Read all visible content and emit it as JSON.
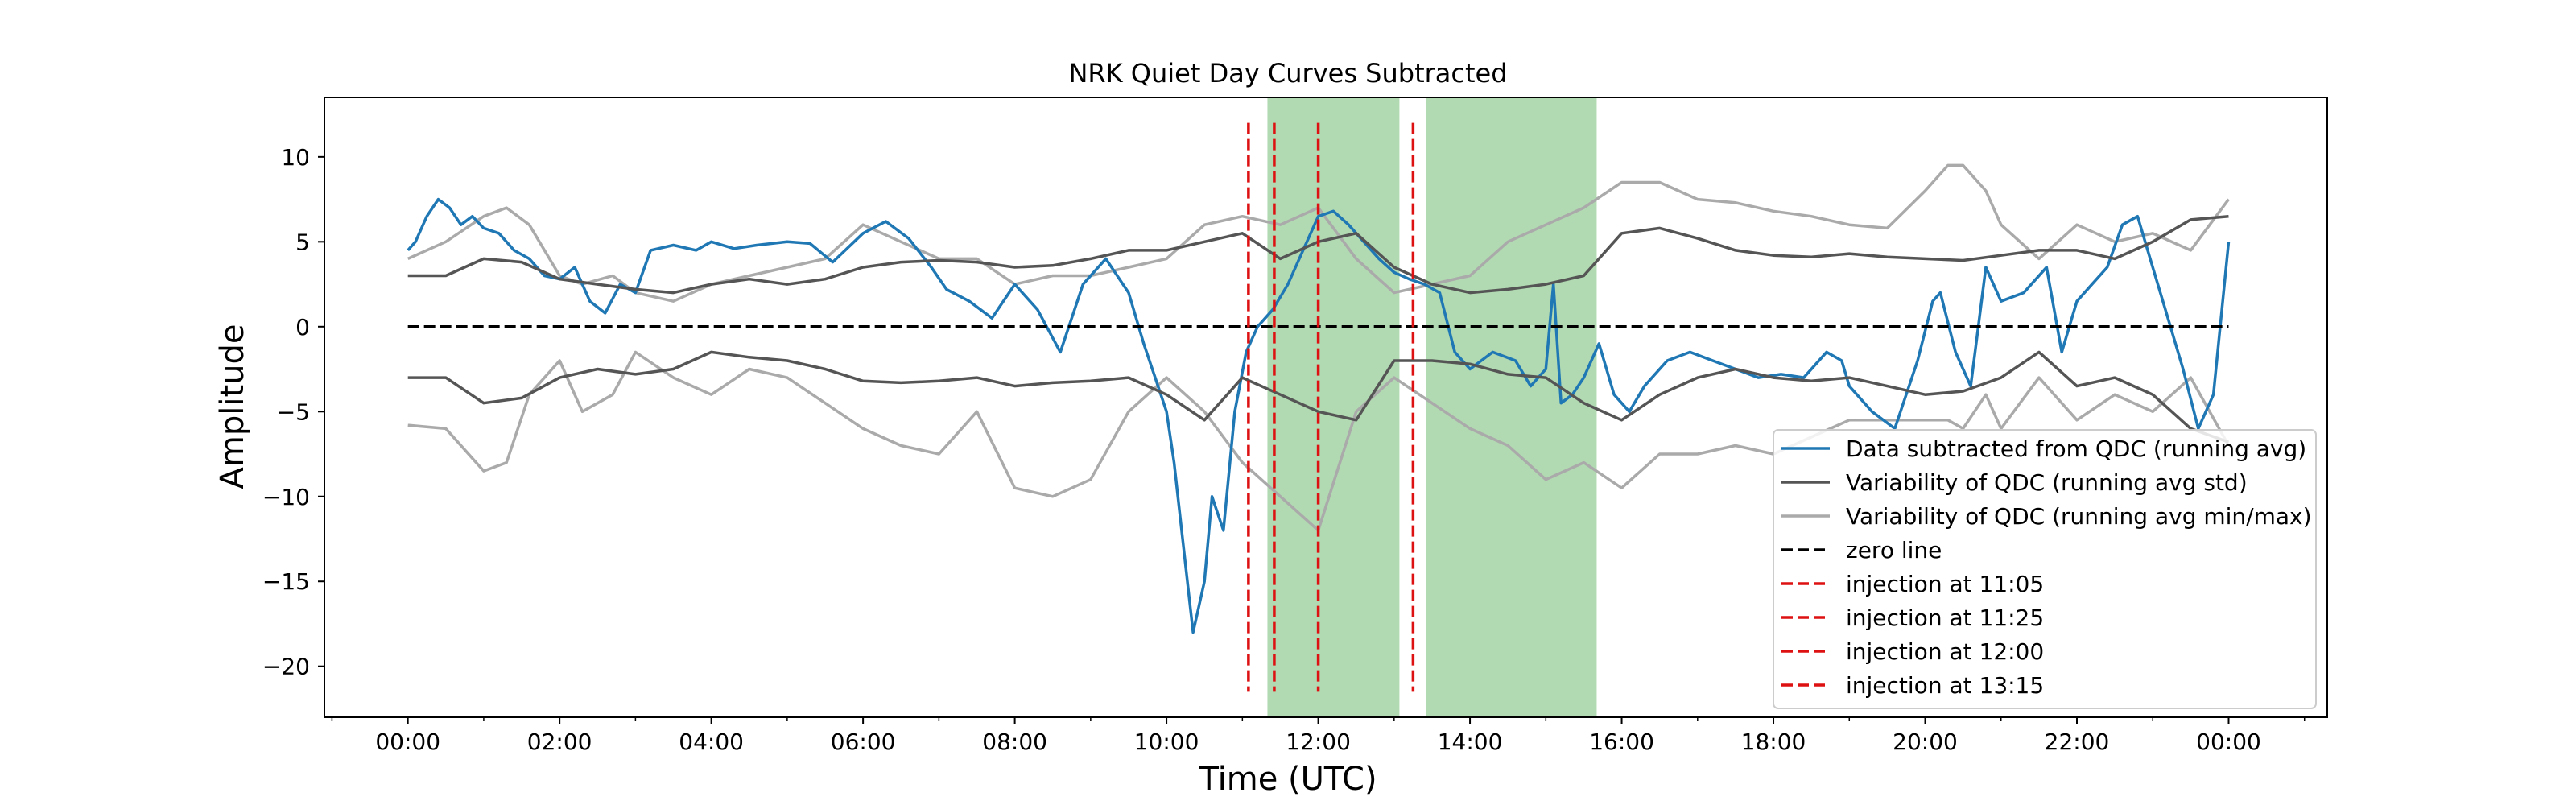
{
  "chart_data": {
    "type": "line",
    "title": "NRK Quiet Day Curves Subtracted",
    "xlabel": "Time (UTC)",
    "ylabel": "Amplitude",
    "xlim": [
      -1.1,
      25.3
    ],
    "ylim": [
      -23.0,
      13.5
    ],
    "x_unit": "hours UTC",
    "x_ticks": [
      0,
      2,
      4,
      6,
      8,
      10,
      12,
      14,
      16,
      18,
      20,
      22,
      24
    ],
    "x_tick_labels": [
      "00:00",
      "02:00",
      "04:00",
      "06:00",
      "08:00",
      "10:00",
      "12:00",
      "14:00",
      "16:00",
      "18:00",
      "20:00",
      "22:00",
      "00:00"
    ],
    "y_ticks": [
      10,
      5,
      0,
      -5,
      -10,
      -15,
      -20
    ],
    "y_tick_labels": [
      "10",
      "5",
      "0",
      "−5",
      "−10",
      "−15",
      "−20"
    ],
    "grid": false,
    "legend_position": "lower-right",
    "shaded_regions": [
      {
        "x_start": 11.33,
        "x_end": 13.07,
        "color": "#b2dab2"
      },
      {
        "x_start": 13.42,
        "x_end": 15.67,
        "color": "#b2dab2"
      }
    ],
    "colors": {
      "data": "#1f77b4",
      "std": "#555555",
      "minmax": "#aaaaaa",
      "zero": "#000000",
      "injection": "#dd1111"
    },
    "series": [
      {
        "name": "Data subtracted from QDC (running avg)",
        "role": "data",
        "x": [
          0,
          0.1,
          0.25,
          0.4,
          0.55,
          0.7,
          0.85,
          1.0,
          1.2,
          1.4,
          1.6,
          1.8,
          2.0,
          2.2,
          2.4,
          2.6,
          2.8,
          3.0,
          3.2,
          3.5,
          3.8,
          4.0,
          4.3,
          4.6,
          5.0,
          5.3,
          5.6,
          6.0,
          6.3,
          6.6,
          6.9,
          7.1,
          7.4,
          7.7,
          8.0,
          8.3,
          8.6,
          8.9,
          9.2,
          9.5,
          9.7,
          9.85,
          10.0,
          10.1,
          10.2,
          10.35,
          10.5,
          10.6,
          10.75,
          10.9,
          11.05,
          11.2,
          11.4,
          11.6,
          11.8,
          12.0,
          12.2,
          12.4,
          12.6,
          12.8,
          13.0,
          13.2,
          13.4,
          13.6,
          13.8,
          14.0,
          14.3,
          14.6,
          14.8,
          15.0,
          15.1,
          15.2,
          15.35,
          15.5,
          15.7,
          15.9,
          16.1,
          16.3,
          16.6,
          16.9,
          17.2,
          17.5,
          17.8,
          18.1,
          18.4,
          18.7,
          18.9,
          19.0,
          19.1,
          19.3,
          19.6,
          19.9,
          20.1,
          20.2,
          20.4,
          20.6,
          20.8,
          21.0,
          21.3,
          21.6,
          21.8,
          22.0,
          22.2,
          22.4,
          22.6,
          22.8,
          23.0,
          23.2,
          23.4,
          23.6,
          23.8,
          24.0
        ],
        "y": [
          4.5,
          5.0,
          6.5,
          7.5,
          7.0,
          6.0,
          6.5,
          5.8,
          5.5,
          4.5,
          4.0,
          3.0,
          2.8,
          3.5,
          1.5,
          0.8,
          2.5,
          2.0,
          4.5,
          4.8,
          4.5,
          5.0,
          4.6,
          4.8,
          5.0,
          4.9,
          3.8,
          5.5,
          6.2,
          5.2,
          3.5,
          2.2,
          1.5,
          0.5,
          2.5,
          1.0,
          -1.5,
          2.5,
          4.0,
          2.0,
          -1.0,
          -3.0,
          -5.0,
          -8.0,
          -12.0,
          -18.0,
          -15.0,
          -10.0,
          -12.0,
          -5.0,
          -1.5,
          0.0,
          1.0,
          2.5,
          4.5,
          6.5,
          6.8,
          6.0,
          5.0,
          4.0,
          3.2,
          2.8,
          2.5,
          2.0,
          -1.5,
          -2.5,
          -1.5,
          -2.0,
          -3.5,
          -2.5,
          2.5,
          -4.5,
          -4.0,
          -3.0,
          -1.0,
          -4.0,
          -5.0,
          -3.5,
          -2.0,
          -1.5,
          -2.0,
          -2.5,
          -3.0,
          -2.8,
          -3.0,
          -1.5,
          -2.0,
          -3.5,
          -4.0,
          -5.0,
          -6.0,
          -2.0,
          1.5,
          2.0,
          -1.5,
          -3.5,
          3.5,
          1.5,
          2.0,
          3.5,
          -1.5,
          1.5,
          2.5,
          3.5,
          6.0,
          6.5,
          3.5,
          0.5,
          -2.5,
          -6.0,
          -4.0,
          5.0
        ]
      },
      {
        "name": "Variability of QDC (running avg std)",
        "role": "std-upper",
        "x": [
          0,
          0.5,
          1.0,
          1.5,
          2.0,
          2.5,
          3.0,
          3.5,
          4.0,
          4.5,
          5.0,
          5.5,
          6.0,
          6.5,
          7.0,
          7.5,
          8.0,
          8.5,
          9.0,
          9.5,
          10.0,
          10.5,
          11.0,
          11.5,
          12.0,
          12.5,
          13.0,
          13.5,
          14.0,
          14.5,
          15.0,
          15.5,
          16.0,
          16.5,
          17.0,
          17.5,
          18.0,
          18.5,
          19.0,
          19.5,
          20.0,
          20.5,
          21.0,
          21.5,
          22.0,
          22.5,
          23.0,
          23.5,
          24.0
        ],
        "y": [
          3.0,
          3.0,
          4.0,
          3.8,
          2.8,
          2.5,
          2.2,
          2.0,
          2.5,
          2.8,
          2.5,
          2.8,
          3.5,
          3.8,
          3.9,
          3.8,
          3.5,
          3.6,
          4.0,
          4.5,
          4.5,
          5.0,
          5.5,
          4.0,
          5.0,
          5.5,
          3.5,
          2.5,
          2.0,
          2.2,
          2.5,
          3.0,
          5.5,
          5.8,
          5.2,
          4.5,
          4.2,
          4.1,
          4.3,
          4.1,
          4.0,
          3.9,
          4.2,
          4.5,
          4.5,
          4.0,
          5.0,
          6.3,
          6.5
        ]
      },
      {
        "name": "",
        "role": "std-lower",
        "x": [
          0,
          0.5,
          1.0,
          1.5,
          2.0,
          2.5,
          3.0,
          3.5,
          4.0,
          4.5,
          5.0,
          5.5,
          6.0,
          6.5,
          7.0,
          7.5,
          8.0,
          8.5,
          9.0,
          9.5,
          10.0,
          10.5,
          11.0,
          11.5,
          12.0,
          12.5,
          13.0,
          13.5,
          14.0,
          14.5,
          15.0,
          15.5,
          16.0,
          16.5,
          17.0,
          17.5,
          18.0,
          18.5,
          19.0,
          19.5,
          20.0,
          20.5,
          21.0,
          21.5,
          22.0,
          22.5,
          23.0,
          23.5,
          24.0
        ],
        "y": [
          -3.0,
          -3.0,
          -4.5,
          -4.2,
          -3.0,
          -2.5,
          -2.8,
          -2.5,
          -1.5,
          -1.8,
          -2.0,
          -2.5,
          -3.2,
          -3.3,
          -3.2,
          -3.0,
          -3.5,
          -3.3,
          -3.2,
          -3.0,
          -4.0,
          -5.5,
          -3.0,
          -4.0,
          -5.0,
          -5.5,
          -2.0,
          -2.0,
          -2.2,
          -2.8,
          -3.0,
          -4.5,
          -5.5,
          -4.0,
          -3.0,
          -2.5,
          -3.0,
          -3.2,
          -3.0,
          -3.5,
          -4.0,
          -3.8,
          -3.0,
          -1.5,
          -3.5,
          -3.0,
          -4.0,
          -6.0,
          -6.8
        ]
      },
      {
        "name": "Variability of QDC (running avg min/max)",
        "role": "minmax-upper",
        "x": [
          0,
          0.5,
          1.0,
          1.3,
          1.6,
          2.0,
          2.3,
          2.7,
          3.0,
          3.5,
          4.0,
          4.5,
          5.0,
          5.5,
          6.0,
          6.5,
          7.0,
          7.5,
          8.0,
          8.5,
          9.0,
          9.5,
          10.0,
          10.5,
          11.0,
          11.5,
          12.0,
          12.5,
          13.0,
          13.5,
          14.0,
          14.5,
          15.0,
          15.5,
          16.0,
          16.5,
          17.0,
          17.5,
          18.0,
          18.5,
          19.0,
          19.5,
          20.0,
          20.3,
          20.5,
          20.8,
          21.0,
          21.5,
          22.0,
          22.5,
          23.0,
          23.5,
          24.0
        ],
        "y": [
          4.0,
          5.0,
          6.5,
          7.0,
          6.0,
          3.0,
          2.5,
          3.0,
          2.0,
          1.5,
          2.5,
          3.0,
          3.5,
          4.0,
          6.0,
          5.0,
          4.0,
          4.0,
          2.5,
          3.0,
          3.0,
          3.5,
          4.0,
          6.0,
          6.5,
          6.0,
          7.0,
          4.0,
          2.0,
          2.5,
          3.0,
          5.0,
          6.0,
          7.0,
          8.5,
          8.5,
          7.5,
          7.3,
          6.8,
          6.5,
          6.0,
          5.8,
          8.0,
          9.5,
          9.5,
          8.0,
          6.0,
          4.0,
          6.0,
          5.0,
          5.5,
          4.5,
          7.5
        ]
      },
      {
        "name": "",
        "role": "minmax-lower",
        "x": [
          0,
          0.5,
          1.0,
          1.3,
          1.6,
          2.0,
          2.3,
          2.7,
          3.0,
          3.5,
          4.0,
          4.5,
          5.0,
          5.5,
          6.0,
          6.5,
          7.0,
          7.5,
          8.0,
          8.5,
          9.0,
          9.5,
          10.0,
          10.5,
          11.0,
          11.5,
          12.0,
          12.5,
          13.0,
          13.5,
          14.0,
          14.5,
          15.0,
          15.5,
          16.0,
          16.5,
          17.0,
          17.5,
          18.0,
          18.5,
          19.0,
          19.5,
          20.0,
          20.3,
          20.5,
          20.8,
          21.0,
          21.5,
          22.0,
          22.5,
          23.0,
          23.5,
          24.0
        ],
        "y": [
          -5.8,
          -6.0,
          -8.5,
          -8.0,
          -4.0,
          -2.0,
          -5.0,
          -4.0,
          -1.5,
          -3.0,
          -4.0,
          -2.5,
          -3.0,
          -4.5,
          -6.0,
          -7.0,
          -7.5,
          -5.0,
          -9.5,
          -10.0,
          -9.0,
          -5.0,
          -3.0,
          -5.0,
          -8.0,
          -10.0,
          -12.0,
          -5.0,
          -3.0,
          -4.5,
          -6.0,
          -7.0,
          -9.0,
          -8.0,
          -9.5,
          -7.5,
          -7.5,
          -7.0,
          -7.5,
          -6.5,
          -5.5,
          -5.5,
          -5.5,
          -5.5,
          -6.0,
          -4.0,
          -6.0,
          -3.0,
          -5.5,
          -4.0,
          -5.0,
          -3.0,
          -7.0
        ]
      }
    ],
    "injections": [
      11.08,
      11.42,
      12.0,
      13.25
    ],
    "legend": [
      {
        "label": "Data subtracted from QDC (running avg)",
        "style": "solid",
        "color": "#1f77b4"
      },
      {
        "label": "Variability of QDC (running avg std)",
        "style": "solid",
        "color": "#555555"
      },
      {
        "label": "Variability of QDC (running avg min/max)",
        "style": "solid",
        "color": "#aaaaaa"
      },
      {
        "label": "zero line",
        "style": "dashed",
        "color": "#000000"
      },
      {
        "label": "injection at 11:05",
        "style": "dashed",
        "color": "#dd1111"
      },
      {
        "label": "injection at 11:25",
        "style": "dashed",
        "color": "#dd1111"
      },
      {
        "label": "injection at 12:00",
        "style": "dashed",
        "color": "#dd1111"
      },
      {
        "label": "injection at 13:15",
        "style": "dashed",
        "color": "#dd1111"
      }
    ]
  }
}
